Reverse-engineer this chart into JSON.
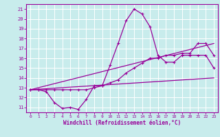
{
  "xlabel": "Windchill (Refroidissement éolien,°C)",
  "bg_color": "#c8ecec",
  "line_color": "#990099",
  "grid_color": "#ffffff",
  "x_ticks": [
    0,
    1,
    2,
    3,
    4,
    5,
    6,
    7,
    8,
    9,
    10,
    11,
    12,
    13,
    14,
    15,
    16,
    17,
    18,
    19,
    20,
    21,
    22,
    23
  ],
  "y_ticks": [
    11,
    12,
    13,
    14,
    15,
    16,
    17,
    18,
    19,
    20,
    21
  ],
  "xlim": [
    -0.5,
    23.5
  ],
  "ylim": [
    10.5,
    21.5
  ],
  "line1_x": [
    0,
    1,
    2,
    3,
    4,
    5,
    6,
    7,
    8,
    9,
    10,
    11,
    12,
    13,
    14,
    15,
    16,
    17,
    18,
    19,
    20,
    21,
    22,
    23
  ],
  "line1_y": [
    12.8,
    12.8,
    12.6,
    11.5,
    10.9,
    11.0,
    10.8,
    11.8,
    13.2,
    13.2,
    15.3,
    17.5,
    19.8,
    21.0,
    20.5,
    19.2,
    16.3,
    15.6,
    15.6,
    16.3,
    16.3,
    16.3,
    16.3,
    15.0
  ],
  "line2_x": [
    0,
    23
  ],
  "line2_y": [
    12.8,
    14.0
  ],
  "line3_x": [
    0,
    23
  ],
  "line3_y": [
    12.8,
    17.5
  ],
  "line4_x": [
    0,
    1,
    2,
    3,
    4,
    5,
    6,
    7,
    8,
    9,
    10,
    11,
    12,
    13,
    14,
    15,
    16,
    17,
    18,
    19,
    20,
    21,
    22,
    23
  ],
  "line4_y": [
    12.8,
    12.8,
    12.8,
    12.8,
    12.8,
    12.8,
    12.8,
    12.8,
    13.0,
    13.2,
    13.5,
    13.8,
    14.5,
    15.0,
    15.5,
    16.0,
    16.0,
    16.3,
    16.3,
    16.5,
    16.5,
    17.5,
    17.5,
    16.3
  ]
}
